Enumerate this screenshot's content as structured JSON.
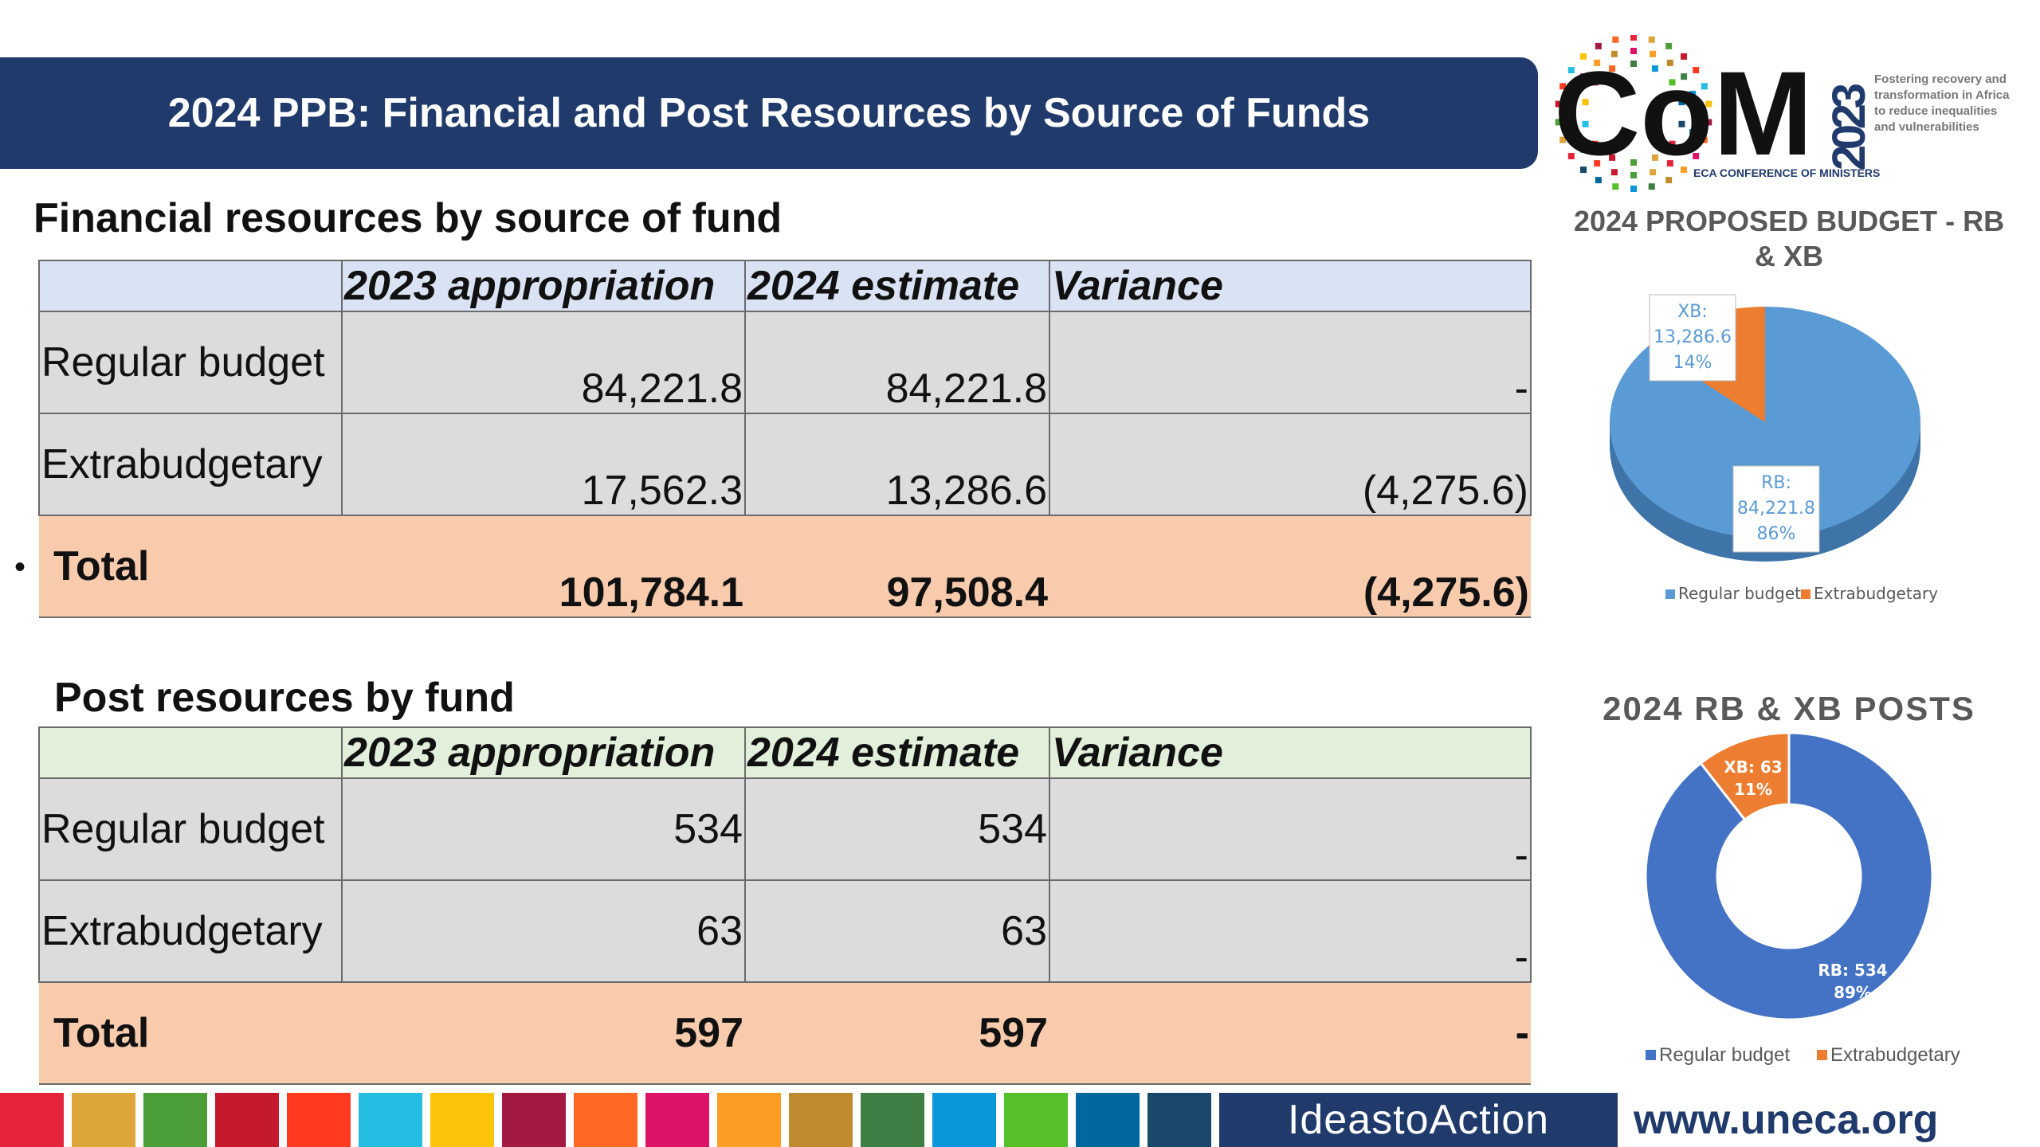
{
  "title": "2024 PPB: Financial and Post Resources by Source of Funds",
  "logo": {
    "mark": "CoM",
    "year": "2023",
    "caption": "ECA CONFERENCE OF MINISTERS",
    "tagline": [
      "Fostering recovery and",
      "transformation in Africa",
      "to reduce inequalities",
      "and vulnerabilities"
    ]
  },
  "financial": {
    "heading": "Financial resources by source of fund",
    "headers": [
      "",
      "2023 appropriation",
      "2024 estimate",
      "Variance"
    ],
    "rows": [
      {
        "label": "Regular budget",
        "a2023": "84,221.8",
        "e2024": "84,221.8",
        "variance": "-"
      },
      {
        "label": "Extrabudgetary",
        "a2023": "17,562.3",
        "e2024": "13,286.6",
        "variance": "(4,275.6)"
      },
      {
        "label": "Total",
        "a2023": "101,784.1",
        "e2024": "97,508.4",
        "variance": "(4,275.6)"
      }
    ]
  },
  "posts": {
    "heading": "Post resources by fund",
    "headers": [
      "",
      "2023 appropriation",
      "2024 estimate",
      "Variance"
    ],
    "rows": [
      {
        "label": "Regular budget",
        "a2023": "534",
        "e2024": "534",
        "variance": "-"
      },
      {
        "label": "Extrabudgetary",
        "a2023": "63",
        "e2024": "63",
        "variance": "-"
      },
      {
        "label": "Total",
        "a2023": "597",
        "e2024": "597",
        "variance": "-"
      }
    ]
  },
  "chart_data": [
    {
      "type": "pie",
      "title": "2024 PROPOSED BUDGET - RB & XB",
      "categories": [
        "Regular budget",
        "Extrabudgetary"
      ],
      "values": [
        84221.8,
        13286.6
      ],
      "percentages": [
        86,
        14
      ],
      "data_labels": [
        {
          "name": "RB:",
          "value": "84,221.8",
          "percent": "86%"
        },
        {
          "name": "XB:",
          "value": "13,286.6",
          "percent": "14%"
        }
      ],
      "colors": [
        "#5b9bd5",
        "#ed7d31"
      ],
      "legend": "bottom"
    },
    {
      "type": "pie",
      "title": "2024 RB & XB POSTS",
      "categories": [
        "Regular budget",
        "Extrabudgetary"
      ],
      "values": [
        534,
        63
      ],
      "percentages": [
        89,
        11
      ],
      "data_labels": [
        {
          "text": "RB: 534",
          "percent": "89%"
        },
        {
          "text": "XB: 63",
          "percent": "11%"
        }
      ],
      "colors": [
        "#4472c4",
        "#ed7d31"
      ],
      "legend": "bottom"
    }
  ],
  "footer": {
    "ideas_to_action": "IdeastoAction",
    "url": "www.uneca.org",
    "sdg_colors": [
      "#e5243b",
      "#dda63a",
      "#4c9f38",
      "#c5192d",
      "#ff3a21",
      "#26bde2",
      "#fcc30b",
      "#a21942",
      "#fd6925",
      "#dd1367",
      "#fd9d24",
      "#bf8b2e",
      "#3f7e44",
      "#0a97d9",
      "#56c02b",
      "#00689d",
      "#19486a"
    ]
  }
}
